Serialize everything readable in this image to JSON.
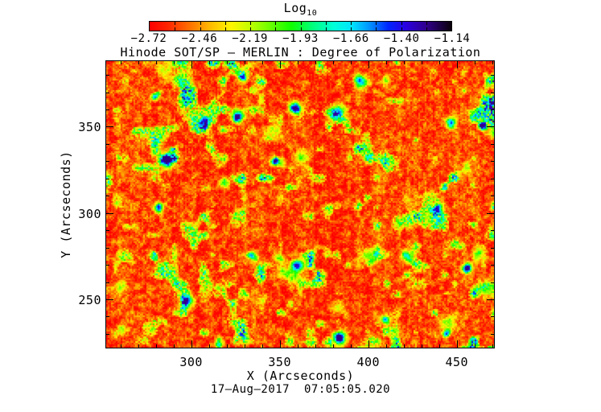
{
  "chart_data": {
    "type": "heatmap",
    "title": "Hinode SOT/SP — MERLIN : Degree of Polarization",
    "xlabel": "X (Arcseconds)",
    "ylabel": "Y (Arcseconds)",
    "timestamp": "17–Aug–2017  07:05:05.020",
    "xlim": [
      252,
      471
    ],
    "ylim": [
      222,
      388
    ],
    "x_ticks": [
      300,
      350,
      400,
      450
    ],
    "y_ticks": [
      250,
      300,
      350
    ],
    "minor_tick_interval": 10,
    "grid": false,
    "colorbar": {
      "scale_label": "Log",
      "scale_label_subscript": "10",
      "range": [
        -2.72,
        -1.14
      ],
      "tick_labels": [
        "−2.72",
        "−2.46",
        "−2.19",
        "−1.93",
        "−1.66",
        "−1.40",
        "−1.14"
      ],
      "minor_divisions": 12,
      "colors": [
        {
          "pos": 0.0,
          "hex": "#ff0000"
        },
        {
          "pos": 0.06,
          "hex": "#ff2500"
        },
        {
          "pos": 0.13,
          "hex": "#ff6d00"
        },
        {
          "pos": 0.2,
          "hex": "#ffb900"
        },
        {
          "pos": 0.27,
          "hex": "#fff500"
        },
        {
          "pos": 0.33,
          "hex": "#c4ff00"
        },
        {
          "pos": 0.4,
          "hex": "#6aff00"
        },
        {
          "pos": 0.47,
          "hex": "#0fff00"
        },
        {
          "pos": 0.54,
          "hex": "#00ff7b"
        },
        {
          "pos": 0.61,
          "hex": "#00ffd8"
        },
        {
          "pos": 0.67,
          "hex": "#00e4ff"
        },
        {
          "pos": 0.73,
          "hex": "#0091ff"
        },
        {
          "pos": 0.79,
          "hex": "#0026ff"
        },
        {
          "pos": 0.85,
          "hex": "#2b00e0"
        },
        {
          "pos": 0.92,
          "hex": "#300087"
        },
        {
          "pos": 1.0,
          "hex": "#0a000a"
        }
      ]
    },
    "field": {
      "background_log10": -2.55,
      "description": "Quiet-Sun degree-of-polarization map: predominantly red-orange background (log10 DOP near -2.6) with fine yellow granular speckle, a mottled yellow-green magnetic network, and sparse strong-polarization patches with cyan rims and blue/violet cores.",
      "strong_features_arcsec": [
        [
          279,
          368
        ],
        [
          307,
          352
        ],
        [
          297,
          249
        ],
        [
          421,
          276
        ],
        [
          446,
          353
        ],
        [
          396,
          376
        ],
        [
          383,
          360
        ],
        [
          360,
          270
        ],
        [
          333,
          276
        ],
        [
          281,
          303
        ],
        [
          464,
          351
        ],
        [
          455,
          268
        ],
        [
          347,
          330
        ],
        [
          410,
          238
        ],
        [
          383,
          228
        ],
        [
          315,
          224
        ],
        [
          444,
          231
        ],
        [
          286,
          331
        ],
        [
          326,
          357
        ],
        [
          438,
          302
        ],
        [
          329,
          379
        ],
        [
          358,
          361
        ]
      ]
    }
  }
}
